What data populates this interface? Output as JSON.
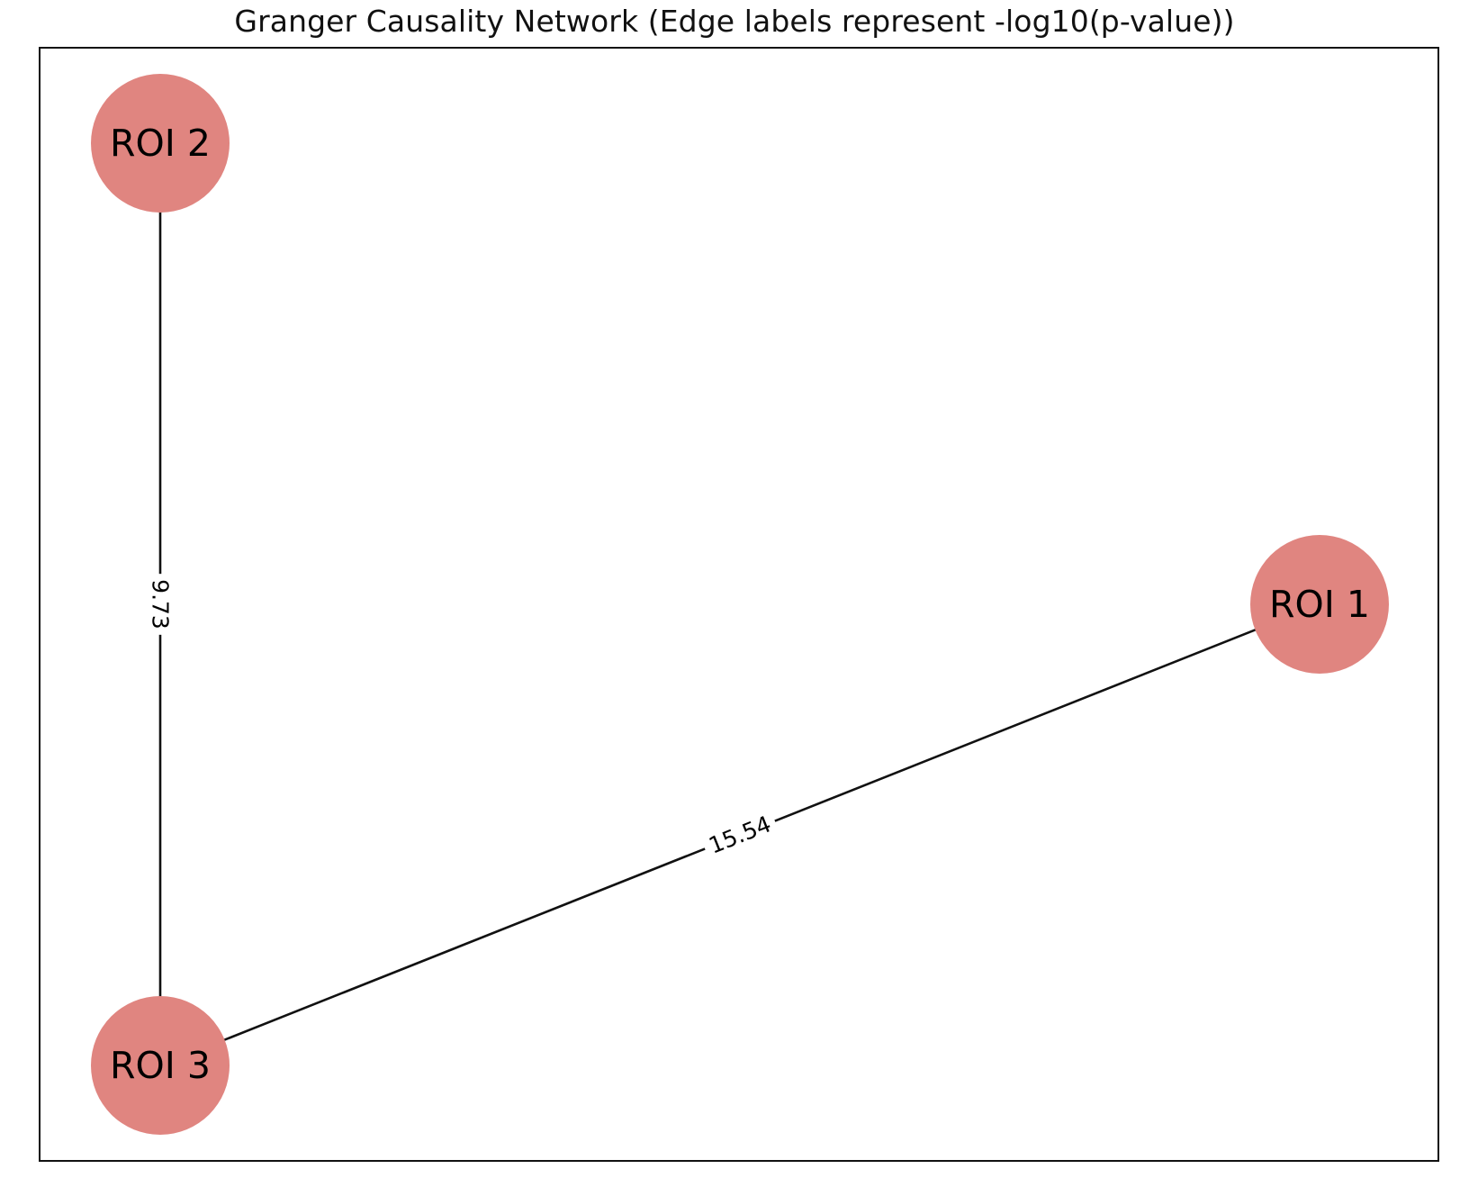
{
  "title": "Granger Causality Network (Edge labels represent -log10(p-value))",
  "colors": {
    "node_fill": "#e08580",
    "edge": "#111111",
    "frame": "#111111",
    "background": "#ffffff"
  },
  "graph": {
    "nodes": [
      {
        "id": "roi1",
        "label": "ROI 1"
      },
      {
        "id": "roi2",
        "label": "ROI 2"
      },
      {
        "id": "roi3",
        "label": "ROI 3"
      }
    ],
    "edges": [
      {
        "id": "e-roi2-roi3",
        "source": "roi2",
        "target": "roi3",
        "label": "9.73"
      },
      {
        "id": "e-roi1-roi3",
        "source": "roi1",
        "target": "roi3",
        "label": "15.54"
      }
    ]
  }
}
